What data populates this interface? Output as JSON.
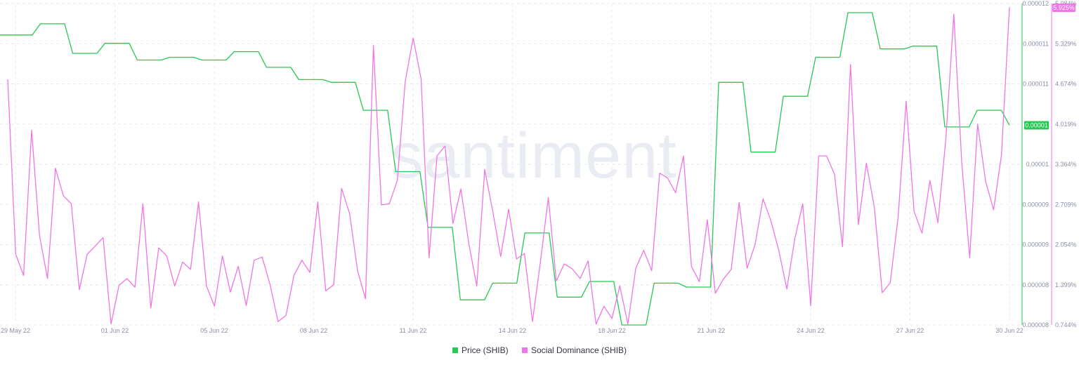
{
  "watermark": "santiment",
  "chart_data": {
    "type": "line",
    "x_ticks": [
      "29 May 22",
      "01 Jun 22",
      "05 Jun 22",
      "08 Jun 22",
      "11 Jun 22",
      "14 Jun 22",
      "18 Jun 22",
      "21 Jun 22",
      "24 Jun 22",
      "27 Jun 22",
      "30 Jun 22"
    ],
    "grid": true,
    "legend_position": "bottom",
    "axes": {
      "price": {
        "ticks": [
          "0.000012",
          "0.000011",
          "0.000011",
          "0.00001",
          "0.00001",
          "0.000009",
          "0.000009",
          "0.000008",
          "0.000008"
        ],
        "current_label": "0.00001",
        "color": "#26c953"
      },
      "social": {
        "ticks": [
          "5.984%",
          "5.329%",
          "4.674%",
          "4.019%",
          "3.364%",
          "2.709%",
          "2.054%",
          "1.399%",
          "0.744%"
        ],
        "ylim": [
          0.744,
          5.984
        ],
        "current_label": "5.925%",
        "color": "#f075e8"
      }
    },
    "series": [
      {
        "name": "Price (SHIB)",
        "color": "#26c953",
        "axis": "price",
        "values": [
          11.2,
          11.2,
          11.2,
          11.2,
          11.2,
          11.4,
          11.4,
          11.4,
          11.4,
          10.87,
          10.87,
          10.87,
          10.87,
          11.05,
          11.05,
          11.05,
          11.05,
          10.75,
          10.75,
          10.75,
          10.75,
          10.8,
          10.8,
          10.8,
          10.8,
          10.75,
          10.75,
          10.75,
          10.75,
          10.9,
          10.9,
          10.9,
          10.9,
          10.62,
          10.62,
          10.62,
          10.62,
          10.4,
          10.4,
          10.4,
          10.4,
          10.35,
          10.35,
          10.35,
          10.35,
          9.85,
          9.85,
          9.85,
          9.85,
          8.75,
          8.75,
          8.75,
          8.75,
          7.75,
          7.75,
          7.75,
          7.75,
          6.45,
          6.45,
          6.45,
          6.45,
          6.75,
          6.75,
          6.75,
          6.75,
          7.65,
          7.65,
          7.65,
          7.65,
          6.5,
          6.5,
          6.5,
          6.5,
          6.78,
          6.78,
          6.78,
          6.78,
          6.0,
          6.0,
          6.0,
          6.0,
          6.75,
          6.75,
          6.75,
          6.75,
          6.68,
          6.68,
          6.68,
          6.68,
          10.35,
          10.35,
          10.35,
          10.35,
          9.1,
          9.1,
          9.1,
          9.1,
          10.1,
          10.1,
          10.1,
          10.1,
          10.8,
          10.8,
          10.8,
          10.8,
          11.6,
          11.6,
          11.6,
          11.6,
          10.95,
          10.95,
          10.95,
          10.95,
          11.0,
          11.0,
          11.0,
          11.0,
          9.55,
          9.55,
          9.55,
          9.55,
          9.85,
          9.85,
          9.85,
          9.85,
          9.58
        ]
      },
      {
        "name": "Social Dominance (SHIB)",
        "color": "#f075e8",
        "axis": "social",
        "values": [
          4.75,
          1.9,
          1.55,
          3.92,
          2.2,
          1.5,
          3.3,
          2.85,
          2.72,
          1.32,
          1.9,
          2.03,
          2.17,
          0.76,
          1.39,
          1.5,
          1.36,
          2.72,
          1.02,
          2.0,
          1.87,
          1.38,
          1.77,
          1.65,
          2.75,
          1.38,
          1.05,
          1.87,
          1.28,
          1.7,
          1.06,
          1.8,
          1.85,
          1.4,
          0.8,
          0.9,
          1.55,
          1.8,
          1.6,
          2.75,
          1.3,
          1.4,
          2.97,
          2.56,
          1.63,
          1.17,
          5.3,
          2.7,
          2.72,
          3.1,
          4.72,
          5.42,
          4.75,
          1.84,
          3.5,
          3.66,
          2.4,
          2.96,
          2.07,
          1.38,
          3.28,
          2.6,
          1.86,
          2.63,
          1.82,
          1.91,
          0.8,
          1.77,
          2.82,
          1.46,
          1.74,
          1.66,
          1.5,
          1.79,
          0.76,
          1.05,
          0.85,
          1.38,
          0.76,
          1.67,
          1.96,
          1.63,
          3.22,
          3.14,
          2.9,
          3.5,
          1.7,
          1.45,
          2.46,
          1.26,
          1.49,
          1.65,
          2.74,
          1.67,
          2.05,
          2.8,
          2.44,
          1.95,
          1.33,
          2.15,
          2.72,
          1.06,
          3.5,
          3.5,
          3.2,
          2.02,
          4.99,
          2.38,
          3.38,
          2.67,
          1.27,
          1.43,
          2.51,
          4.39,
          2.6,
          2.24,
          3.1,
          2.41,
          3.78,
          5.81,
          3.39,
          1.84,
          4.02,
          3.09,
          2.62,
          3.52,
          5.925
        ]
      }
    ]
  }
}
